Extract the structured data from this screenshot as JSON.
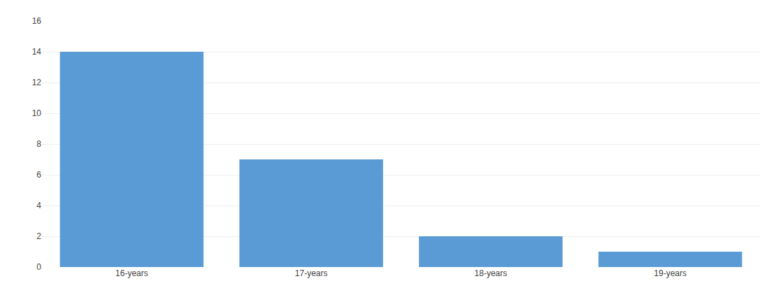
{
  "chart_data": {
    "type": "bar",
    "categories": [
      "16-years",
      "17-years",
      "18-years",
      "19-years"
    ],
    "values": [
      14,
      7,
      2,
      1
    ],
    "color": "#5B9BD5",
    "ylim": [
      0,
      16
    ],
    "yticks": [
      0,
      2,
      4,
      6,
      8,
      10,
      12,
      14,
      16
    ],
    "grid": true
  }
}
